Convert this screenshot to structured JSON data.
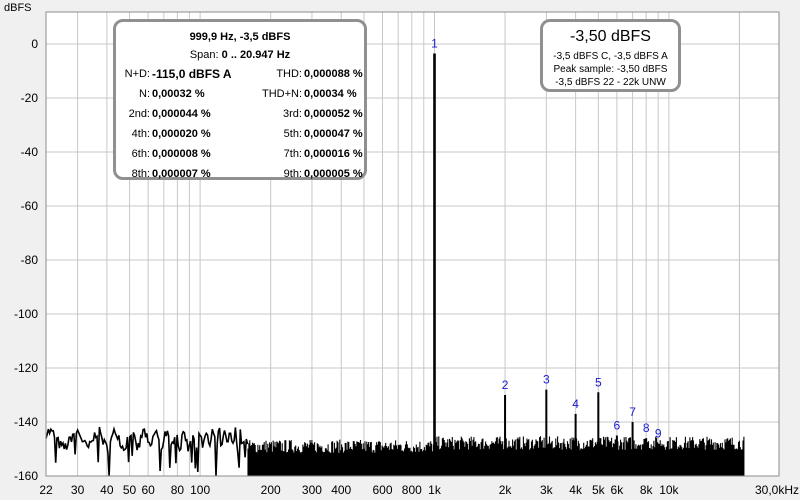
{
  "chart_data": {
    "type": "line",
    "ylabel": "dBFS",
    "xscale": "log",
    "xlim": [
      22,
      30000
    ],
    "ylim": [
      -160,
      10
    ],
    "yticks": [
      0,
      -20,
      -40,
      -60,
      -80,
      -100,
      -120,
      -140,
      -160
    ],
    "xticks": [
      {
        "v": 22,
        "label": "22"
      },
      {
        "v": 30,
        "label": "30"
      },
      {
        "v": 40,
        "label": "40"
      },
      {
        "v": 50,
        "label": "50"
      },
      {
        "v": 60,
        "label": "60"
      },
      {
        "v": 80,
        "label": "80"
      },
      {
        "v": 100,
        "label": "100"
      },
      {
        "v": 200,
        "label": "200"
      },
      {
        "v": 300,
        "label": "300"
      },
      {
        "v": 400,
        "label": "400"
      },
      {
        "v": 600,
        "label": "600"
      },
      {
        "v": 800,
        "label": "800"
      },
      {
        "v": 1000,
        "label": "1k"
      },
      {
        "v": 2000,
        "label": "2k"
      },
      {
        "v": 3000,
        "label": "3k"
      },
      {
        "v": 4000,
        "label": "4k"
      },
      {
        "v": 5000,
        "label": "5k"
      },
      {
        "v": 6000,
        "label": "6k"
      },
      {
        "v": 8000,
        "label": "8k"
      },
      {
        "v": 10000,
        "label": "10k"
      },
      {
        "v": 30000,
        "label": "30,0kHz"
      }
    ],
    "grid": true,
    "peaks": [
      {
        "n": "1",
        "f": 1000,
        "db": -3.5
      },
      {
        "n": "2",
        "f": 2000,
        "db": -130
      },
      {
        "n": "3",
        "f": 3000,
        "db": -128
      },
      {
        "n": "4",
        "f": 4000,
        "db": -137
      },
      {
        "n": "5",
        "f": 5000,
        "db": -129
      },
      {
        "n": "6",
        "f": 6000,
        "db": -145
      },
      {
        "n": "7",
        "f": 7000,
        "db": -140
      },
      {
        "n": "8",
        "f": 8000,
        "db": -146
      },
      {
        "n": "9",
        "f": 9000,
        "db": -148
      }
    ],
    "noise_floor": {
      "f_start": 22,
      "f_end": 20947,
      "db_min": -160,
      "db_mean": -147
    },
    "colors": {
      "trace": "#000000",
      "harmonic_label": "#1a1ad0",
      "grid": "#c8c8c8"
    }
  },
  "dist_panel": {
    "line1": "999,9 Hz, -3,5 dBFS",
    "line2_label": "Span:",
    "line2_value": "0 .. 20.947 Hz",
    "rows": [
      {
        "l1": "N+D:",
        "v1": "-115,0 dBFS A",
        "l2": "THD:",
        "v2": "0,000088 %"
      },
      {
        "l1": "N:",
        "v1": "0,00032 %",
        "l2": "THD+N:",
        "v2": "0,00034 %"
      },
      {
        "l1": "2nd:",
        "v1": "0,000044 %",
        "l2": "3rd:",
        "v2": "0,000052 %"
      },
      {
        "l1": "4th:",
        "v1": "0,000020 %",
        "l2": "5th:",
        "v2": "0,000047 %"
      },
      {
        "l1": "6th:",
        "v1": "0,000008 %",
        "l2": "7th:",
        "v2": "0,000016 %"
      },
      {
        "l1": "8th:",
        "v1": "0,000007 %",
        "l2": "9th:",
        "v2": "0,000005 %"
      }
    ]
  },
  "level_panel": {
    "big": "-3,50 dBFS",
    "line1": "-3,5 dBFS C, -3,5 dBFS A",
    "line2": "Peak sample: -3,50 dBFS",
    "line3": "-3,5 dBFS 22 - 22k UNW"
  }
}
